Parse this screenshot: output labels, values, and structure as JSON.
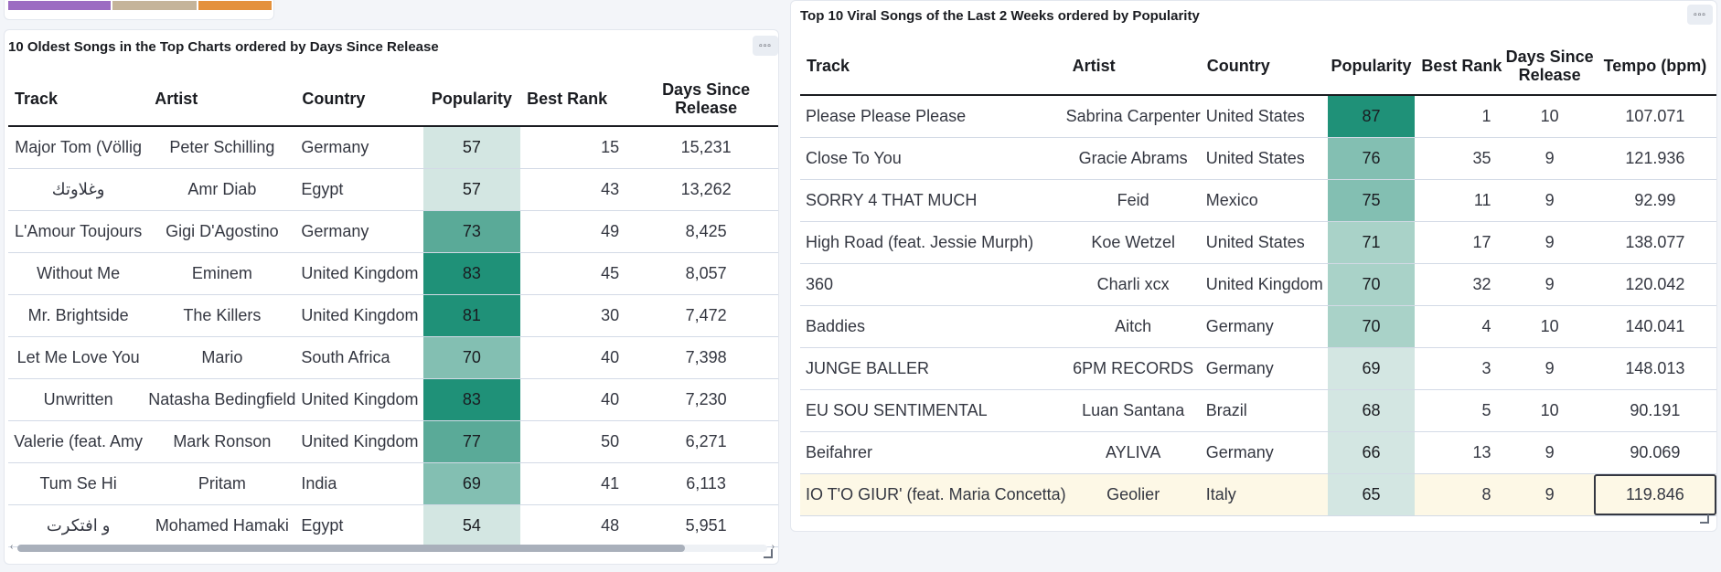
{
  "legend_strip": {
    "colors": [
      "#9c6cc2",
      "#c5b49a",
      "#e4913c"
    ]
  },
  "heat_colors": {
    "54": "#d3e6e2",
    "57": "#d3e6e2",
    "65": "#d3e6e2",
    "66": "#d3e6e2",
    "68": "#d3e6e2",
    "69": "#d3e6e2",
    "70": "#a9d2c8",
    "71": "#a9d2c8",
    "73": "#5aaa98",
    "75": "#83bfb2",
    "76": "#83bfb2",
    "77": "#5aaa98",
    "81": "#1f9178",
    "83": "#1f9178",
    "87": "#1f9178",
    "p1_69": "#83bfb2",
    "p1_70": "#83bfb2"
  },
  "panel1": {
    "title": "10 Oldest Songs in the Top Charts ordered by Days Since Release",
    "menu_icon": "ellipsis-icon",
    "columns": [
      "Track",
      "Artist",
      "Country",
      "Popularity",
      "Best Rank",
      "Days Since Release"
    ],
    "rows": [
      {
        "track": "Major Tom (Völlig",
        "artist": "Peter Schilling",
        "country": "Germany",
        "popularity": "57",
        "best_rank": "15",
        "days": "15,231"
      },
      {
        "track": "وغلاوتك",
        "artist": "Amr Diab",
        "country": "Egypt",
        "popularity": "57",
        "best_rank": "43",
        "days": "13,262"
      },
      {
        "track": "L'Amour Toujours",
        "artist": "Gigi D'Agostino",
        "country": "Germany",
        "popularity": "73",
        "best_rank": "49",
        "days": "8,425"
      },
      {
        "track": "Without Me",
        "artist": "Eminem",
        "country": "United Kingdom",
        "popularity": "83",
        "best_rank": "45",
        "days": "8,057"
      },
      {
        "track": "Mr. Brightside",
        "artist": "The Killers",
        "country": "United Kingdom",
        "popularity": "81",
        "best_rank": "30",
        "days": "7,472"
      },
      {
        "track": "Let Me Love You",
        "artist": "Mario",
        "country": "South Africa",
        "popularity": "70",
        "best_rank": "40",
        "days": "7,398"
      },
      {
        "track": "Unwritten",
        "artist": "Natasha Bedingfield",
        "country": "United Kingdom",
        "popularity": "83",
        "best_rank": "40",
        "days": "7,230"
      },
      {
        "track": "Valerie (feat. Amy",
        "artist": "Mark Ronson",
        "country": "United Kingdom",
        "popularity": "77",
        "best_rank": "50",
        "days": "6,271"
      },
      {
        "track": "Tum Se Hi",
        "artist": "Pritam",
        "country": "India",
        "popularity": "69",
        "best_rank": "41",
        "days": "6,113"
      },
      {
        "track": "و افتكرت",
        "artist": "Mohamed Hamaki",
        "country": "Egypt",
        "popularity": "54",
        "best_rank": "48",
        "days": "5,951"
      }
    ]
  },
  "panel2": {
    "title": "Top 10 Viral Songs of the Last 2 Weeks ordered by Popularity",
    "menu_icon": "ellipsis-icon",
    "columns": [
      "Track",
      "Artist",
      "Country",
      "Popularity",
      "Best Rank",
      "Days Since Release",
      "Tempo (bpm)"
    ],
    "rows": [
      {
        "track": "Please Please Please",
        "artist": "Sabrina Carpenter",
        "country": "United States",
        "popularity": "87",
        "best_rank": "1",
        "days": "10",
        "tempo": "107.071"
      },
      {
        "track": "Close To You",
        "artist": "Gracie Abrams",
        "country": "United States",
        "popularity": "76",
        "best_rank": "35",
        "days": "9",
        "tempo": "121.936"
      },
      {
        "track": "SORRY 4 THAT MUCH",
        "artist": "Feid",
        "country": "Mexico",
        "popularity": "75",
        "best_rank": "11",
        "days": "9",
        "tempo": "92.99"
      },
      {
        "track": "High Road (feat. Jessie Murph)",
        "artist": "Koe Wetzel",
        "country": "United States",
        "popularity": "71",
        "best_rank": "17",
        "days": "9",
        "tempo": "138.077"
      },
      {
        "track": "360",
        "artist": "Charli xcx",
        "country": "United Kingdom",
        "popularity": "70",
        "best_rank": "32",
        "days": "9",
        "tempo": "120.042"
      },
      {
        "track": "Baddies",
        "artist": "Aitch",
        "country": "Germany",
        "popularity": "70",
        "best_rank": "4",
        "days": "10",
        "tempo": "140.041"
      },
      {
        "track": "JUNGE BALLER",
        "artist": "6PM RECORDS",
        "country": "Germany",
        "popularity": "69",
        "best_rank": "3",
        "days": "9",
        "tempo": "148.013"
      },
      {
        "track": "EU SOU SENTIMENTAL",
        "artist": "Luan Santana",
        "country": "Brazil",
        "popularity": "68",
        "best_rank": "5",
        "days": "10",
        "tempo": "90.191"
      },
      {
        "track": "Beifahrer",
        "artist": "AYLIVA",
        "country": "Germany",
        "popularity": "66",
        "best_rank": "13",
        "days": "9",
        "tempo": "90.069"
      },
      {
        "track": "IO T'O GIUR' (feat. Maria Concetta)",
        "artist": "Geolier",
        "country": "Italy",
        "popularity": "65",
        "best_rank": "8",
        "days": "9",
        "tempo": "119.846"
      }
    ]
  }
}
